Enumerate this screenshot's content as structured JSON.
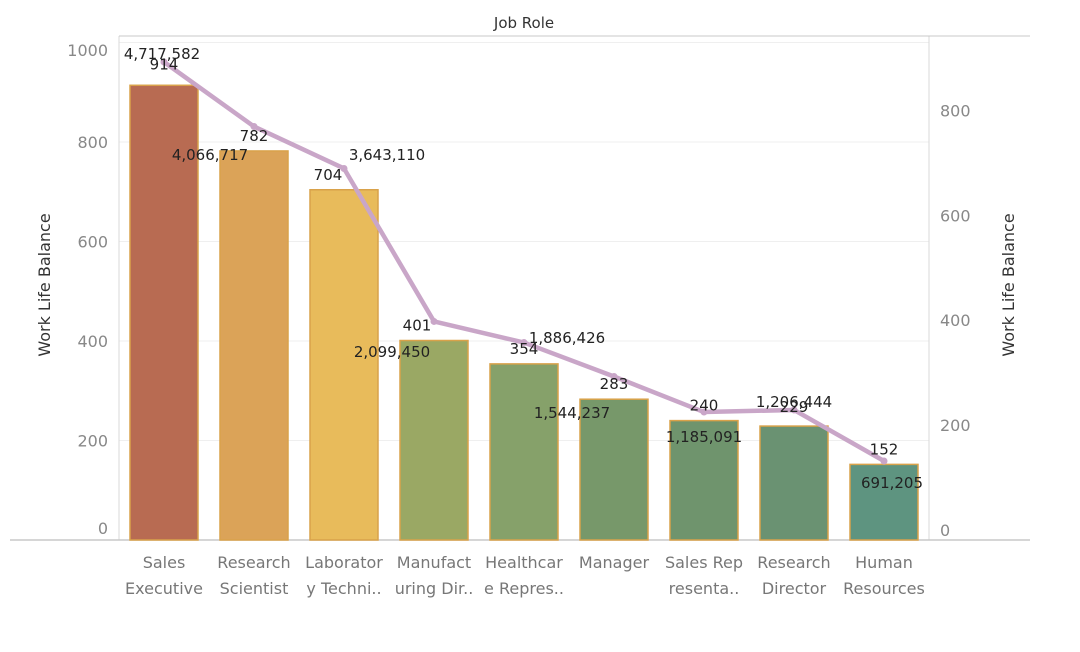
{
  "chart_data": {
    "type": "bar",
    "title": "Job Role",
    "ylabel_left": "Work Life Balance",
    "ylabel_right": "Work Life Balance",
    "left_axis": {
      "range": [
        0,
        1000
      ],
      "ticks": [
        "0",
        "200",
        "400",
        "600",
        "800",
        "1000"
      ]
    },
    "right_axis": {
      "range": [
        0,
        1000
      ],
      "ticks": [
        "0",
        "200",
        "400",
        "600",
        "800"
      ]
    },
    "categories": [
      [
        "Sales",
        "Executive"
      ],
      [
        "Research",
        "Scientist"
      ],
      [
        "Laborator",
        "y Techni.."
      ],
      [
        "Manufact",
        "uring Dir.."
      ],
      [
        "Healthcar",
        "e Repres.."
      ],
      [
        "Manager",
        ""
      ],
      [
        "Sales Rep",
        "resenta.."
      ],
      [
        "Research",
        "Director"
      ],
      [
        "Human",
        "Resources"
      ]
    ],
    "bar_values": [
      914,
      782,
      704,
      401,
      354,
      283,
      240,
      229,
      152
    ],
    "bar_labels": [
      "914",
      "782",
      "704",
      "401",
      "354",
      "283",
      "240",
      "229",
      "152"
    ],
    "bar_colors": [
      "#b86b52",
      "#dba358",
      "#e8bb5b",
      "#9aa864",
      "#86a16a",
      "#77986a",
      "#6f946d",
      "#6a9272",
      "#5e9480"
    ],
    "line_series": {
      "values": [
        4717582,
        4066717,
        3643110,
        2099450,
        1886426,
        1544237,
        1185091,
        1206444,
        691205
      ],
      "labels": [
        "4,717,582",
        "4,066,717",
        "3,643,110",
        "2,099,450",
        "1,886,426",
        "1,544,237",
        "1,185,091",
        "1,206,444",
        "691,205"
      ],
      "color": "#c9a6c8"
    },
    "grid": true
  }
}
